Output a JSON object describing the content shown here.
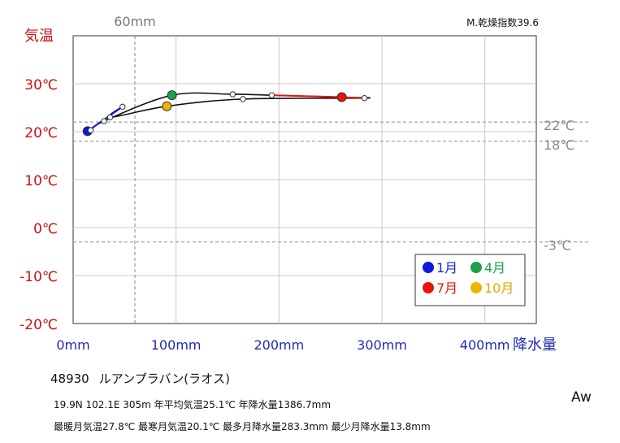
{
  "chart_data": {
    "type": "climograph",
    "ylabel": "気温",
    "xlabel": "降水量",
    "xlim": [
      0,
      450
    ],
    "ylim": [
      -20,
      40
    ],
    "x_ticks": [
      {
        "value": 0,
        "label": "0mm"
      },
      {
        "value": 100,
        "label": "100mm"
      },
      {
        "value": 200,
        "label": "200mm"
      },
      {
        "value": 300,
        "label": "300mm"
      },
      {
        "value": 400,
        "label": "400mm"
      }
    ],
    "y_ticks": [
      {
        "value": 30,
        "label": "30℃"
      },
      {
        "value": 20,
        "label": "20℃"
      },
      {
        "value": 10,
        "label": "10℃"
      },
      {
        "value": 0,
        "label": "0℃"
      },
      {
        "value": -10,
        "label": "-10℃"
      },
      {
        "value": -20,
        "label": "-20℃"
      }
    ],
    "top_marker": {
      "value": 60,
      "label": "60mm"
    },
    "thresholds": [
      {
        "value": 22,
        "label": "22℃"
      },
      {
        "value": 18,
        "label": "18℃"
      },
      {
        "value": -3,
        "label": "-3℃"
      }
    ],
    "aridity_index": "M.乾燥指数39.6",
    "months": [
      {
        "month": 1,
        "precip": 14,
        "temp": 20.1
      },
      {
        "month": 2,
        "precip": 17,
        "temp": 20.3
      },
      {
        "month": 3,
        "precip": 30,
        "temp": 22.2
      },
      {
        "month": 4,
        "precip": 96,
        "temp": 27.6
      },
      {
        "month": 5,
        "precip": 155,
        "temp": 27.8
      },
      {
        "month": 6,
        "precip": 193,
        "temp": 27.6
      },
      {
        "month": 7,
        "precip": 261,
        "temp": 27.2
      },
      {
        "month": 8,
        "precip": 283,
        "temp": 27.0
      },
      {
        "month": 9,
        "precip": 165,
        "temp": 26.8
      },
      {
        "month": 10,
        "precip": 91,
        "temp": 25.3
      },
      {
        "month": 11,
        "precip": 36,
        "temp": 23.0
      },
      {
        "month": 12,
        "precip": 48,
        "temp": 25.2
      }
    ],
    "highlight": [
      {
        "month": 1,
        "label": "1月",
        "color": "#0a1ad6",
        "text_color": "#1a2ad6"
      },
      {
        "month": 4,
        "label": "4月",
        "color": "#1aa34a",
        "text_color": "#1aa34a"
      },
      {
        "month": 7,
        "label": "7月",
        "color": "#e8140c",
        "text_color": "#e8140c"
      },
      {
        "month": 10,
        "label": "10月",
        "color": "#f0b400",
        "text_color": "#e0a800"
      }
    ],
    "colors": {
      "y_axis_text": "#cc1111",
      "x_axis_text": "#1f2bb0",
      "threshold_text": "#888888",
      "curve": "#111111",
      "warm_segment": "#e8140c",
      "cool_segment": "#0a1ad6"
    }
  },
  "station": {
    "id": "48930",
    "name": "ルアンプラバン(ラオス)"
  },
  "stats": {
    "line1": "19.9N  102.1E 305m  年平均気温25.1℃ 年降水量1386.7mm",
    "line2": "最暖月気温27.8℃ 最寒月気温20.1℃ 最多月降水量283.3mm 最少月降水量13.8mm"
  },
  "koppen": "Aw"
}
